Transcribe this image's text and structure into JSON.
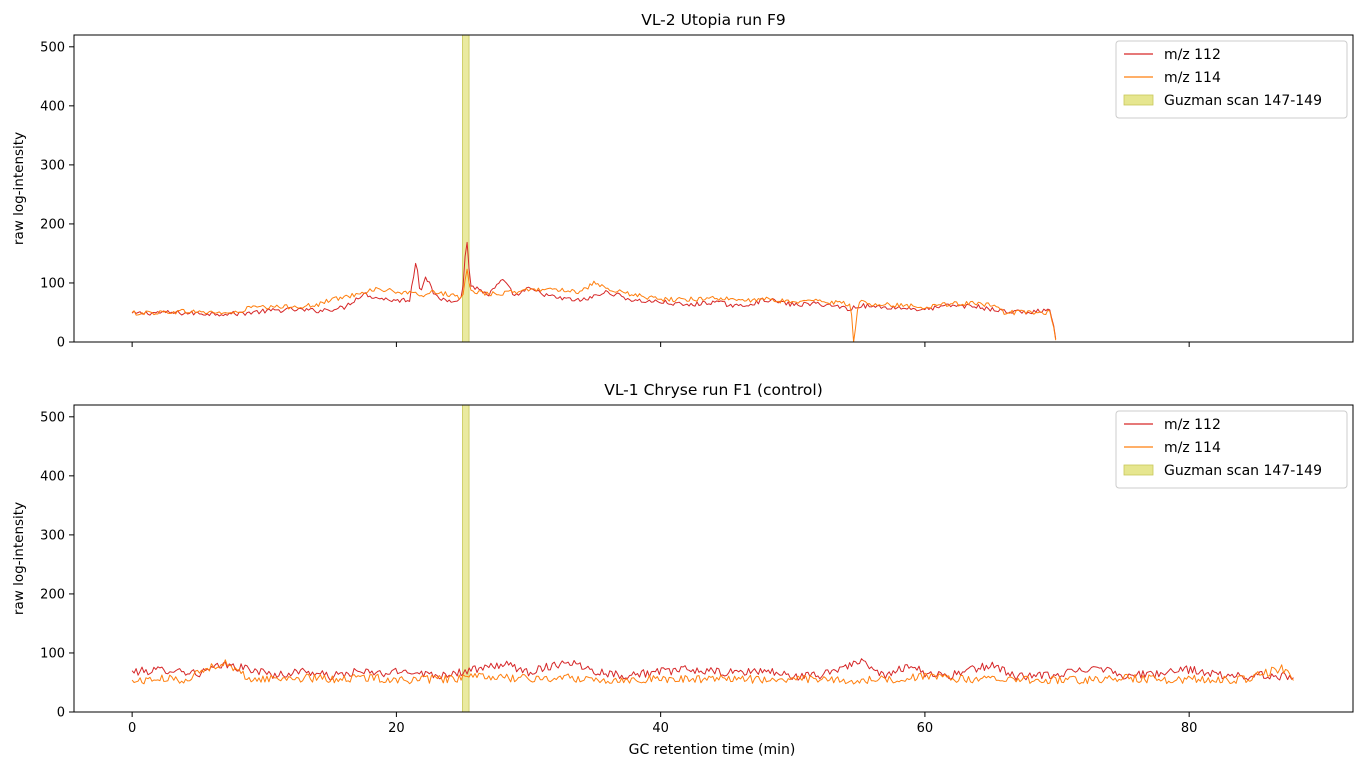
{
  "figure": {
    "xlabel": "GC retention time (min)"
  },
  "chart_data": [
    {
      "type": "line",
      "title": "VL-2 Utopia run F9",
      "ylabel": "raw log-intensity",
      "xlim": [
        -4.4,
        92.4
      ],
      "ylim": [
        0,
        520
      ],
      "xticks": [
        0,
        20,
        40,
        60,
        80
      ],
      "yticks": [
        0,
        100,
        200,
        300,
        400,
        500
      ],
      "show_xticklabels": false,
      "legend_position": "top-right",
      "band": {
        "name": "Guzman scan 147-149",
        "x0": 25.0,
        "x1": 25.5,
        "color": "#e6e68f"
      },
      "series": [
        {
          "name": "m/z 112",
          "color": "#d62728",
          "x": [
            0,
            2,
            4,
            6,
            8,
            10,
            12,
            14,
            16,
            17.5,
            18.5,
            20,
            21,
            21.5,
            21.8,
            22.2,
            23,
            24,
            25,
            25.3,
            25.6,
            26,
            27,
            28,
            29,
            30,
            32,
            34,
            36,
            38,
            40,
            42,
            44,
            46,
            48,
            50,
            52,
            54,
            54.4,
            54.6,
            55,
            56,
            58,
            60,
            62,
            64,
            65,
            66,
            68,
            69.5,
            69.9,
            70
          ],
          "y": [
            48,
            50,
            49,
            48,
            48,
            52,
            55,
            53,
            58,
            82,
            75,
            70,
            72,
            140,
            85,
            112,
            75,
            70,
            75,
            184,
            95,
            92,
            80,
            105,
            78,
            90,
            75,
            70,
            85,
            70,
            68,
            62,
            68,
            60,
            72,
            63,
            65,
            58,
            55,
            58,
            62,
            60,
            58,
            55,
            62,
            60,
            55,
            52,
            50,
            55,
            5,
            0
          ]
        },
        {
          "name": "m/z 114",
          "color": "#ff7f0e",
          "x": [
            0,
            2,
            4,
            6,
            8,
            9,
            10,
            12,
            14,
            15,
            16,
            17.5,
            18.5,
            20,
            21,
            22,
            23,
            24,
            25,
            25.3,
            25.6,
            26,
            27,
            28,
            30,
            32,
            34,
            35,
            36,
            38,
            40,
            42,
            44,
            46,
            48,
            50,
            52,
            54,
            54.4,
            54.6,
            55,
            56,
            58,
            60,
            62,
            64,
            65,
            66,
            68,
            69.5,
            69.9,
            70
          ],
          "y": [
            49,
            50,
            52,
            50,
            49,
            60,
            58,
            60,
            62,
            72,
            75,
            85,
            90,
            85,
            82,
            80,
            85,
            80,
            72,
            125,
            92,
            85,
            82,
            82,
            88,
            90,
            85,
            100,
            88,
            80,
            72,
            72,
            75,
            70,
            72,
            68,
            70,
            65,
            60,
            0,
            68,
            65,
            62,
            60,
            65,
            65,
            62,
            50,
            50,
            50,
            5,
            0
          ]
        }
      ]
    },
    {
      "type": "line",
      "title": "VL-1 Chryse run F1 (control)",
      "ylabel": "raw log-intensity",
      "xlim": [
        -4.4,
        92.4
      ],
      "ylim": [
        0,
        520
      ],
      "xticks": [
        0,
        20,
        40,
        60,
        80
      ],
      "yticks": [
        0,
        100,
        200,
        300,
        400,
        500
      ],
      "show_xticklabels": true,
      "legend_position": "top-right",
      "band": {
        "name": "Guzman scan 147-149",
        "x0": 25.0,
        "x1": 25.5,
        "color": "#e6e68f"
      },
      "series": [
        {
          "name": "m/z 112",
          "color": "#d62728",
          "x": [
            0,
            1.5,
            3,
            5,
            7,
            9,
            11,
            13,
            15,
            17,
            19,
            21,
            23,
            25,
            27,
            28,
            30,
            33,
            35,
            37,
            40,
            42,
            45,
            48,
            50,
            52,
            55,
            57,
            59,
            60,
            62,
            65,
            67,
            70,
            73,
            75,
            78,
            80,
            83,
            86,
            88
          ],
          "y": [
            68,
            70,
            72,
            65,
            80,
            72,
            62,
            70,
            60,
            68,
            65,
            70,
            62,
            68,
            75,
            82,
            68,
            86,
            70,
            62,
            68,
            72,
            66,
            70,
            60,
            62,
            86,
            60,
            82,
            65,
            62,
            80,
            60,
            62,
            78,
            62,
            65,
            72,
            60,
            62,
            60
          ]
        },
        {
          "name": "m/z 114",
          "color": "#ff7f0e",
          "x": [
            0,
            2,
            4,
            6.8,
            9,
            12,
            15,
            18,
            21,
            24,
            27,
            30,
            33,
            36,
            39,
            42,
            45,
            48,
            51,
            54,
            57,
            60,
            63,
            66,
            69,
            72,
            75,
            78,
            81,
            84,
            87,
            88
          ],
          "y": [
            52,
            56,
            55,
            85,
            55,
            58,
            56,
            58,
            54,
            56,
            60,
            56,
            58,
            54,
            56,
            55,
            58,
            54,
            56,
            53,
            55,
            60,
            55,
            56,
            55,
            54,
            58,
            55,
            56,
            55,
            74,
            55
          ]
        }
      ]
    }
  ]
}
